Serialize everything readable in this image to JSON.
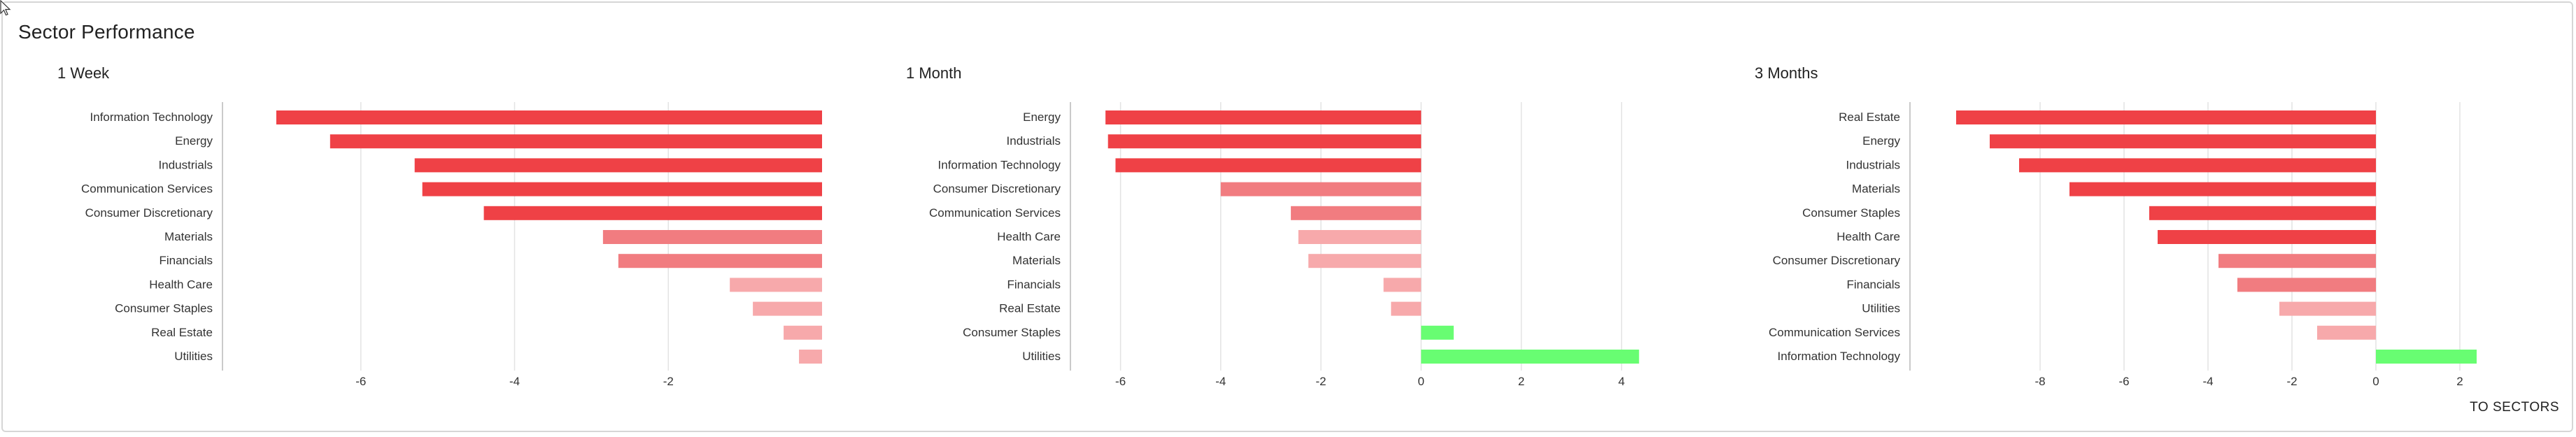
{
  "page": {
    "title": "Sector Performance",
    "link_label": "TO SECTORS"
  },
  "colors": {
    "neg_strong": "#ef4146",
    "neg_mid": "#f17c80",
    "neg_light": "#f7a9ab",
    "pos_strong": "#68fd72",
    "axis": "#b8b8b8",
    "grid": "#e3e3e3"
  },
  "chart_data": [
    {
      "type": "bar",
      "title": "1 Week",
      "categories": [
        "Information Technology",
        "Energy",
        "Industrials",
        "Communication Services",
        "Consumer Discretionary",
        "Materials",
        "Financials",
        "Health Care",
        "Consumer Staples",
        "Real Estate",
        "Utilities"
      ],
      "values": [
        -7.1,
        -6.4,
        -5.3,
        -5.2,
        -4.4,
        -2.85,
        -2.65,
        -1.2,
        -0.9,
        -0.5,
        -0.3
      ],
      "xlim": [
        -7.8,
        0
      ],
      "xticks": [
        -6,
        -4,
        -2
      ],
      "grid": true
    },
    {
      "type": "bar",
      "title": "1 Month",
      "categories": [
        "Energy",
        "Industrials",
        "Information Technology",
        "Consumer Discretionary",
        "Communication Services",
        "Health Care",
        "Materials",
        "Financials",
        "Real Estate",
        "Consumer Staples",
        "Utilities"
      ],
      "values": [
        -6.3,
        -6.25,
        -6.1,
        -4.0,
        -2.6,
        -2.45,
        -2.25,
        -0.75,
        -0.6,
        0.65,
        4.35
      ],
      "xlim": [
        -7.0,
        4.8
      ],
      "xticks": [
        -6,
        -4,
        -2,
        0,
        2,
        4
      ],
      "grid": true
    },
    {
      "type": "bar",
      "title": "3 Months",
      "categories": [
        "Real Estate",
        "Energy",
        "Industrials",
        "Materials",
        "Consumer Staples",
        "Health Care",
        "Consumer Discretionary",
        "Financials",
        "Utilities",
        "Communication Services",
        "Information Technology"
      ],
      "values": [
        -10.0,
        -9.2,
        -8.5,
        -7.3,
        -5.4,
        -5.2,
        -3.75,
        -3.3,
        -2.3,
        -1.4,
        2.4
      ],
      "xlim": [
        -11.1,
        3.2
      ],
      "xticks": [
        -8,
        -6,
        -4,
        -2,
        0,
        2
      ],
      "grid": true
    }
  ]
}
